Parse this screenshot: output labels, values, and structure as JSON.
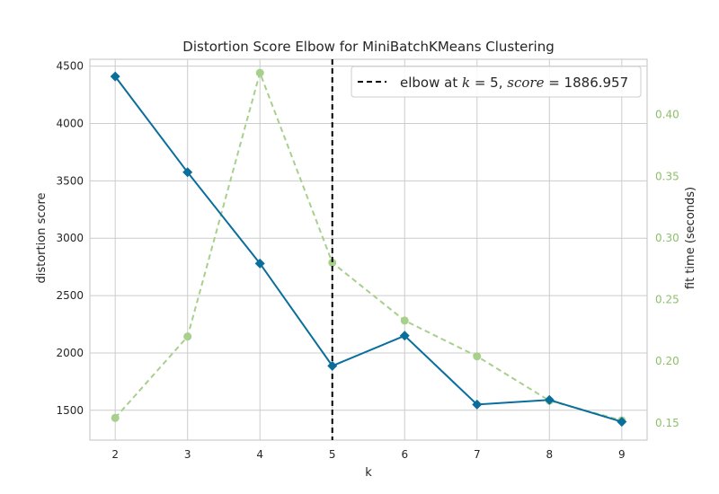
{
  "chart_data": {
    "type": "line",
    "title": "Distortion Score Elbow for MiniBatchKMeans Clustering",
    "xlabel": "k",
    "ylabel": "distortion score",
    "y2label": "fit time (seconds)",
    "x": [
      2,
      3,
      4,
      5,
      6,
      7,
      8,
      9
    ],
    "xlim": [
      1.65,
      9.35
    ],
    "ylim": [
      1240,
      4560
    ],
    "y2lim": [
      0.136,
      0.445
    ],
    "xticks": [
      2,
      3,
      4,
      5,
      6,
      7,
      8,
      9
    ],
    "yticks": [
      1500,
      2000,
      2500,
      3000,
      3500,
      4000,
      4500
    ],
    "y2ticks": [
      "0.15",
      "0.20",
      "0.25",
      "0.30",
      "0.35",
      "0.40"
    ],
    "grid": true,
    "series": [
      {
        "role": "distortion",
        "axis": "left",
        "color": "#0a6e9c",
        "marker": "diamond",
        "line_style": "solid",
        "values": [
          4410,
          3575,
          2780,
          1887,
          2150,
          1550,
          1590,
          1400
        ]
      },
      {
        "role": "fit_time",
        "axis": "right",
        "color": "#a8d08d",
        "marker": "circle",
        "line_style": "dashed",
        "values": [
          0.154,
          0.22,
          0.434,
          0.28,
          0.233,
          0.204,
          0.168,
          0.152
        ]
      }
    ],
    "elbow": {
      "k": 5,
      "score": "1886.957",
      "color": "#000000",
      "line_style": "dashed",
      "legend_prefix": "elbow at ",
      "legend_k_symbol": "k",
      "legend_k_text": " = 5, ",
      "legend_score_symbol": "score",
      "legend_score_text": " = 1886.957",
      "legend_position": "top-right"
    }
  }
}
